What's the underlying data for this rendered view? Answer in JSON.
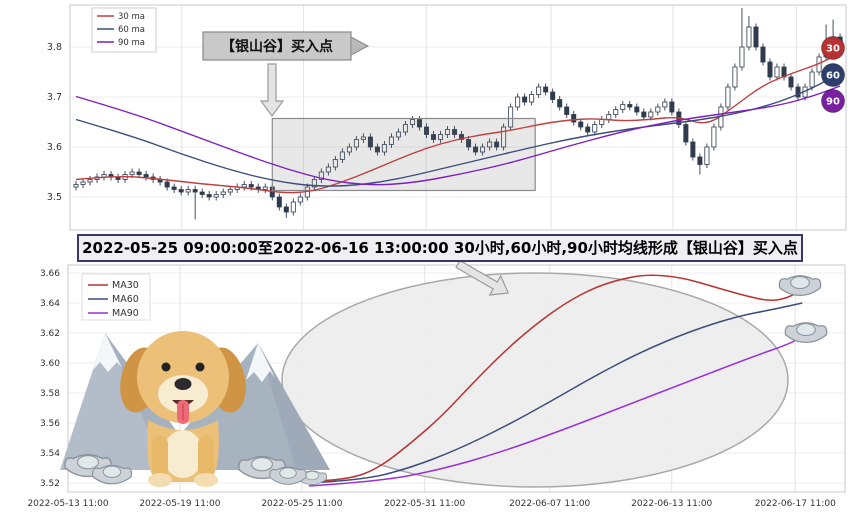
{
  "top_chart": {
    "legend": [
      {
        "label": "30 ma",
        "color": "#bf4040"
      },
      {
        "label": "60 ma",
        "color": "#3b4d7a"
      },
      {
        "label": "90 ma",
        "color": "#7d1fc0"
      }
    ],
    "yticks": [
      "3.8",
      "3.7",
      "3.6",
      "3.5"
    ],
    "annotation_label": "【银山谷】买入点",
    "badges": [
      {
        "label": "30",
        "color": "#b73232"
      },
      {
        "label": "60",
        "color": "#2e3f6e"
      },
      {
        "label": "90",
        "color": "#7a1fa2"
      }
    ]
  },
  "banner": {
    "text": "2022-05-25 09:00:00至2022-06-16 13:00:00 30小时,60小时,90小时均线形成【银山谷】买入点"
  },
  "bottom_chart": {
    "legend": [
      {
        "label": "MA30",
        "color": "#b73232"
      },
      {
        "label": "MA60",
        "color": "#3b4d7a"
      },
      {
        "label": "MA90",
        "color": "#9a30d8"
      }
    ],
    "yticks": [
      "3.66",
      "3.64",
      "3.62",
      "3.60",
      "3.58",
      "3.56",
      "3.54",
      "3.52"
    ],
    "xticks": [
      "2022-05-13 11:00",
      "2022-05-19 11:00",
      "2022-05-25 11:00",
      "2022-05-31 11:00",
      "2022-06-07 11:00",
      "2022-06-13 11:00",
      "2022-06-17 11:00"
    ]
  },
  "chart_data": [
    {
      "type": "candlestick",
      "title": "",
      "x_range": [
        "2022-05-13",
        "2022-06-17"
      ],
      "ylim": [
        3.44,
        3.9
      ],
      "candle_color": "#2f3c4e",
      "candles": [
        [
          3.52,
          3.532,
          3.513,
          3.525
        ],
        [
          3.525,
          3.537,
          3.518,
          3.53
        ],
        [
          3.53,
          3.542,
          3.523,
          3.535
        ],
        [
          3.535,
          3.547,
          3.528,
          3.54
        ],
        [
          3.54,
          3.552,
          3.533,
          3.545
        ],
        [
          3.545,
          3.552,
          3.533,
          3.54
        ],
        [
          3.54,
          3.547,
          3.528,
          3.535
        ],
        [
          3.535,
          3.552,
          3.528,
          3.545
        ],
        [
          3.545,
          3.557,
          3.538,
          3.55
        ],
        [
          3.55,
          3.557,
          3.538,
          3.545
        ],
        [
          3.545,
          3.552,
          3.533,
          3.54
        ],
        [
          3.54,
          3.547,
          3.528,
          3.535
        ],
        [
          3.535,
          3.542,
          3.523,
          3.53
        ],
        [
          3.53,
          3.537,
          3.513,
          3.52
        ],
        [
          3.52,
          3.527,
          3.508,
          3.515
        ],
        [
          3.515,
          3.522,
          3.503,
          3.51
        ],
        [
          3.51,
          3.522,
          3.503,
          3.515
        ],
        [
          3.515,
          3.522,
          3.455,
          3.51
        ],
        [
          3.51,
          3.517,
          3.498,
          3.505
        ],
        [
          3.505,
          3.512,
          3.493,
          3.5
        ],
        [
          3.5,
          3.512,
          3.493,
          3.505
        ],
        [
          3.505,
          3.517,
          3.498,
          3.51
        ],
        [
          3.51,
          3.522,
          3.503,
          3.515
        ],
        [
          3.515,
          3.527,
          3.508,
          3.52
        ],
        [
          3.52,
          3.532,
          3.513,
          3.525
        ],
        [
          3.525,
          3.532,
          3.513,
          3.52
        ],
        [
          3.52,
          3.527,
          3.508,
          3.515
        ],
        [
          3.515,
          3.527,
          3.508,
          3.52
        ],
        [
          3.52,
          3.527,
          3.493,
          3.5
        ],
        [
          3.5,
          3.507,
          3.473,
          3.48
        ],
        [
          3.48,
          3.487,
          3.458,
          3.47
        ],
        [
          3.47,
          3.497,
          3.463,
          3.49
        ],
        [
          3.49,
          3.507,
          3.483,
          3.5
        ],
        [
          3.5,
          3.527,
          3.493,
          3.52
        ],
        [
          3.52,
          3.542,
          3.513,
          3.535
        ],
        [
          3.535,
          3.557,
          3.528,
          3.55
        ],
        [
          3.55,
          3.567,
          3.543,
          3.56
        ],
        [
          3.56,
          3.582,
          3.553,
          3.575
        ],
        [
          3.575,
          3.597,
          3.568,
          3.59
        ],
        [
          3.59,
          3.607,
          3.583,
          3.6
        ],
        [
          3.6,
          3.622,
          3.593,
          3.615
        ],
        [
          3.615,
          3.627,
          3.608,
          3.62
        ],
        [
          3.62,
          3.627,
          3.593,
          3.6
        ],
        [
          3.6,
          3.607,
          3.583,
          3.59
        ],
        [
          3.59,
          3.612,
          3.583,
          3.605
        ],
        [
          3.605,
          3.627,
          3.598,
          3.62
        ],
        [
          3.62,
          3.637,
          3.613,
          3.63
        ],
        [
          3.63,
          3.652,
          3.623,
          3.645
        ],
        [
          3.645,
          3.662,
          3.638,
          3.655
        ],
        [
          3.655,
          3.662,
          3.633,
          3.64
        ],
        [
          3.64,
          3.647,
          3.618,
          3.625
        ],
        [
          3.625,
          3.632,
          3.608,
          3.615
        ],
        [
          3.615,
          3.632,
          3.608,
          3.625
        ],
        [
          3.625,
          3.642,
          3.618,
          3.635
        ],
        [
          3.635,
          3.642,
          3.618,
          3.625
        ],
        [
          3.625,
          3.632,
          3.608,
          3.615
        ],
        [
          3.615,
          3.622,
          3.593,
          3.6
        ],
        [
          3.6,
          3.607,
          3.583,
          3.59
        ],
        [
          3.59,
          3.607,
          3.583,
          3.6
        ],
        [
          3.6,
          3.617,
          3.593,
          3.61
        ],
        [
          3.61,
          3.617,
          3.593,
          3.6
        ],
        [
          3.6,
          3.647,
          3.593,
          3.64
        ],
        [
          3.64,
          3.687,
          3.633,
          3.68
        ],
        [
          3.68,
          3.707,
          3.673,
          3.7
        ],
        [
          3.7,
          3.707,
          3.683,
          3.69
        ],
        [
          3.69,
          3.712,
          3.683,
          3.705
        ],
        [
          3.705,
          3.727,
          3.698,
          3.72
        ],
        [
          3.72,
          3.727,
          3.703,
          3.71
        ],
        [
          3.71,
          3.717,
          3.688,
          3.695
        ],
        [
          3.695,
          3.702,
          3.673,
          3.68
        ],
        [
          3.68,
          3.687,
          3.658,
          3.665
        ],
        [
          3.665,
          3.672,
          3.643,
          3.65
        ],
        [
          3.65,
          3.657,
          3.633,
          3.64
        ],
        [
          3.64,
          3.647,
          3.623,
          3.63
        ],
        [
          3.63,
          3.652,
          3.623,
          3.645
        ],
        [
          3.645,
          3.662,
          3.638,
          3.655
        ],
        [
          3.655,
          3.672,
          3.648,
          3.665
        ],
        [
          3.665,
          3.682,
          3.658,
          3.675
        ],
        [
          3.675,
          3.692,
          3.668,
          3.685
        ],
        [
          3.685,
          3.692,
          3.673,
          3.68
        ],
        [
          3.68,
          3.687,
          3.663,
          3.67
        ],
        [
          3.67,
          3.677,
          3.653,
          3.66
        ],
        [
          3.66,
          3.677,
          3.653,
          3.67
        ],
        [
          3.67,
          3.687,
          3.663,
          3.68
        ],
        [
          3.68,
          3.697,
          3.673,
          3.69
        ],
        [
          3.69,
          3.697,
          3.663,
          3.67
        ],
        [
          3.67,
          3.677,
          3.638,
          3.645
        ],
        [
          3.645,
          3.652,
          3.603,
          3.61
        ],
        [
          3.61,
          3.617,
          3.573,
          3.58
        ],
        [
          3.58,
          3.587,
          3.545,
          3.565
        ],
        [
          3.565,
          3.607,
          3.558,
          3.6
        ],
        [
          3.6,
          3.647,
          3.593,
          3.64
        ],
        [
          3.64,
          3.687,
          3.633,
          3.68
        ],
        [
          3.68,
          3.727,
          3.673,
          3.72
        ],
        [
          3.72,
          3.767,
          3.713,
          3.76
        ],
        [
          3.76,
          3.878,
          3.753,
          3.8
        ],
        [
          3.8,
          3.862,
          3.793,
          3.84
        ],
        [
          3.84,
          3.847,
          3.793,
          3.8
        ],
        [
          3.8,
          3.807,
          3.763,
          3.77
        ],
        [
          3.77,
          3.777,
          3.733,
          3.74
        ],
        [
          3.74,
          3.767,
          3.733,
          3.76
        ],
        [
          3.76,
          3.767,
          3.733,
          3.74
        ],
        [
          3.74,
          3.747,
          3.713,
          3.72
        ],
        [
          3.72,
          3.727,
          3.693,
          3.7
        ],
        [
          3.7,
          3.727,
          3.693,
          3.72
        ],
        [
          3.72,
          3.757,
          3.713,
          3.75
        ],
        [
          3.75,
          3.787,
          3.743,
          3.78
        ],
        [
          3.78,
          3.845,
          3.773,
          3.8
        ],
        [
          3.8,
          3.855,
          3.793,
          3.82
        ],
        [
          3.82,
          3.827,
          3.803,
          3.81
        ]
      ],
      "series": [
        {
          "name": "30ma",
          "color": "#bf4040",
          "points": [
            [
              0,
              3.535
            ],
            [
              6,
              3.543
            ],
            [
              12,
              3.536
            ],
            [
              18,
              3.526
            ],
            [
              24,
              3.519
            ],
            [
              30,
              3.507
            ],
            [
              34,
              3.512
            ],
            [
              38,
              3.53
            ],
            [
              42,
              3.552
            ],
            [
              46,
              3.576
            ],
            [
              50,
              3.598
            ],
            [
              54,
              3.614
            ],
            [
              58,
              3.625
            ],
            [
              62,
              3.633
            ],
            [
              66,
              3.645
            ],
            [
              70,
              3.654
            ],
            [
              74,
              3.657
            ],
            [
              78,
              3.652
            ],
            [
              82,
              3.655
            ],
            [
              86,
              3.661
            ],
            [
              90,
              3.642
            ],
            [
              94,
              3.682
            ],
            [
              98,
              3.724
            ],
            [
              102,
              3.747
            ],
            [
              106,
              3.766
            ],
            [
              109,
              3.788
            ]
          ]
        },
        {
          "name": "60ma",
          "color": "#3b4d7a",
          "points": [
            [
              0,
              3.655
            ],
            [
              8,
              3.622
            ],
            [
              15,
              3.586
            ],
            [
              22,
              3.554
            ],
            [
              28,
              3.533
            ],
            [
              34,
              3.521
            ],
            [
              40,
              3.523
            ],
            [
              46,
              3.536
            ],
            [
              52,
              3.556
            ],
            [
              58,
              3.576
            ],
            [
              64,
              3.596
            ],
            [
              70,
              3.615
            ],
            [
              76,
              3.63
            ],
            [
              82,
              3.642
            ],
            [
              88,
              3.652
            ],
            [
              94,
              3.666
            ],
            [
              100,
              3.688
            ],
            [
              105,
              3.717
            ],
            [
              109,
              3.748
            ]
          ]
        },
        {
          "name": "90ma",
          "color": "#7d1fc0",
          "points": [
            [
              0,
              3.701
            ],
            [
              8,
              3.668
            ],
            [
              16,
              3.627
            ],
            [
              24,
              3.585
            ],
            [
              30,
              3.556
            ],
            [
              36,
              3.533
            ],
            [
              42,
              3.523
            ],
            [
              48,
              3.528
            ],
            [
              55,
              3.546
            ],
            [
              62,
              3.568
            ],
            [
              70,
              3.601
            ],
            [
              78,
              3.631
            ],
            [
              85,
              3.652
            ],
            [
              92,
              3.666
            ],
            [
              100,
              3.682
            ],
            [
              105,
              3.701
            ],
            [
              109,
              3.722
            ]
          ]
        }
      ],
      "highlight_box": {
        "i0": 28,
        "i1": 65.5,
        "v0": 3.513,
        "v1": 3.657,
        "label": "【银山谷】买入点"
      }
    },
    {
      "type": "line",
      "title": "",
      "ylim": [
        3.515,
        3.668
      ],
      "series": [
        {
          "name": "MA30",
          "color": "#b73232",
          "points": [
            [
              0.31,
              3.521
            ],
            [
              0.36,
              3.522
            ],
            [
              0.4,
              3.53
            ],
            [
              0.44,
              3.546
            ],
            [
              0.48,
              3.564
            ],
            [
              0.52,
              3.586
            ],
            [
              0.56,
              3.607
            ],
            [
              0.6,
              3.625
            ],
            [
              0.64,
              3.64
            ],
            [
              0.68,
              3.651
            ],
            [
              0.72,
              3.657
            ],
            [
              0.75,
              3.659
            ],
            [
              0.79,
              3.657
            ],
            [
              0.83,
              3.651
            ],
            [
              0.87,
              3.645
            ],
            [
              0.905,
              3.641
            ],
            [
              0.93,
              3.644
            ],
            [
              0.945,
              3.65
            ]
          ]
        },
        {
          "name": "MA60",
          "color": "#3b4d7a",
          "points": [
            [
              0.31,
              3.52
            ],
            [
              0.38,
              3.522
            ],
            [
              0.44,
              3.53
            ],
            [
              0.5,
              3.542
            ],
            [
              0.56,
              3.557
            ],
            [
              0.62,
              3.574
            ],
            [
              0.68,
              3.592
            ],
            [
              0.74,
              3.608
            ],
            [
              0.8,
              3.621
            ],
            [
              0.86,
              3.631
            ],
            [
              0.91,
              3.636
            ],
            [
              0.945,
              3.64
            ]
          ]
        },
        {
          "name": "MA90",
          "color": "#9a30d8",
          "points": [
            [
              0.31,
              3.518
            ],
            [
              0.4,
              3.521
            ],
            [
              0.48,
              3.529
            ],
            [
              0.56,
              3.541
            ],
            [
              0.64,
              3.556
            ],
            [
              0.72,
              3.572
            ],
            [
              0.8,
              3.588
            ],
            [
              0.88,
              3.604
            ],
            [
              0.93,
              3.613
            ],
            [
              0.945,
              3.618
            ]
          ]
        }
      ]
    }
  ]
}
